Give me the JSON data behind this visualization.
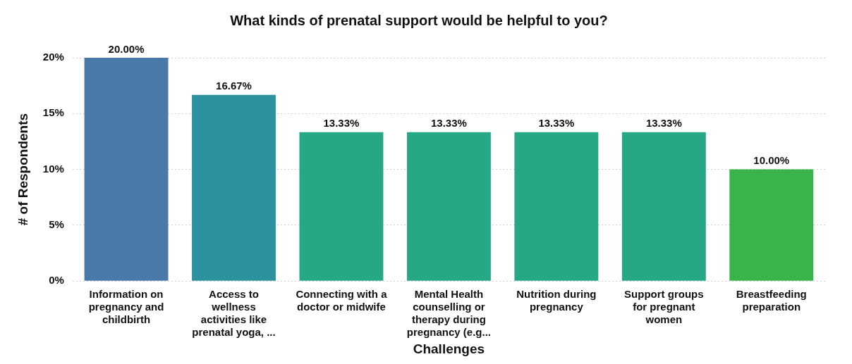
{
  "chart_data": {
    "type": "bar",
    "title": "What kinds of prenatal support would be helpful to you?",
    "xlabel": "Challenges",
    "ylabel": "# of Respondents",
    "categories": [
      "Information on pregnancy and childbirth",
      "Access to wellness activities like prenatal yoga, ...",
      "Connecting with a doctor or midwife",
      "Mental Health counselling or therapy during pregnancy (e.g...",
      "Nutrition during pregnancy",
      "Support groups for pregnant women",
      "Breastfeeding preparation"
    ],
    "values": [
      20,
      16.67,
      13.33,
      13.33,
      13.33,
      13.33,
      10
    ],
    "value_labels": [
      "20.00%",
      "16.67%",
      "13.33%",
      "13.33%",
      "13.33%",
      "13.33%",
      "10.00%"
    ],
    "colors": [
      "#4a78a8",
      "#2d92a0",
      "#26a785",
      "#26a785",
      "#26a785",
      "#26a785",
      "#38b44a"
    ],
    "ylim": [
      0,
      20
    ],
    "yticks": [
      {
        "value": 0,
        "label": "0%"
      },
      {
        "value": 5,
        "label": "5%"
      },
      {
        "value": 10,
        "label": "10%"
      },
      {
        "value": 15,
        "label": "15%"
      },
      {
        "value": 20,
        "label": "20%"
      }
    ],
    "grid": "y",
    "legend": false
  }
}
